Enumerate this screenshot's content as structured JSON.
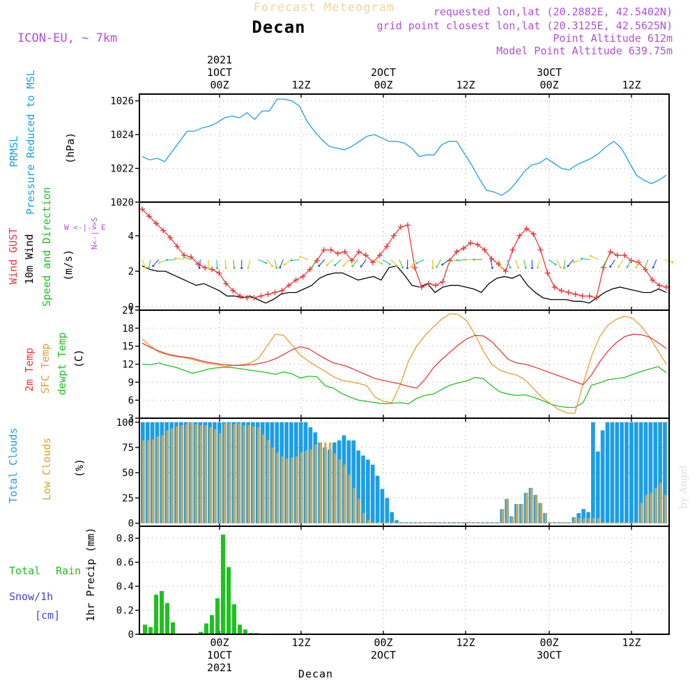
{
  "header": {
    "title_top": "Forecast Meteogram",
    "title_top_color": "#f0d49a",
    "location": "Decan",
    "model": "ICON-EU, ~ 7km",
    "meta_color": "#b04fd6",
    "requested": "requested lon,lat (20.2882E, 42.5402N)",
    "gridpoint": "grid point closest lon,lat (20.3125E, 42.5625N)",
    "point_alt": "Point Altitude 612m",
    "model_alt": "Model Point Altitude 639.75m",
    "watermark": "by Angel",
    "bottom_label": "Decan"
  },
  "time_axis": {
    "top": [
      {
        "idx": 0,
        "lines": [
          "2021",
          "1OCT",
          "00Z"
        ]
      },
      {
        "idx": 1,
        "lines": [
          "12Z"
        ]
      },
      {
        "idx": 2,
        "lines": [
          "2OCT",
          "00Z"
        ]
      },
      {
        "idx": 3,
        "lines": [
          "12Z"
        ]
      },
      {
        "idx": 4,
        "lines": [
          "3OCT",
          "00Z"
        ]
      },
      {
        "idx": 5,
        "lines": [
          "12Z"
        ]
      }
    ],
    "bottom": [
      {
        "idx": 0,
        "lines": [
          "00Z",
          "1OCT",
          "2021"
        ]
      },
      {
        "idx": 1,
        "lines": [
          "12Z"
        ]
      },
      {
        "idx": 2,
        "lines": [
          "00Z",
          "2OCT"
        ]
      },
      {
        "idx": 3,
        "lines": [
          "12Z"
        ]
      },
      {
        "idx": 4,
        "lines": [
          "00Z",
          "3OCT"
        ]
      },
      {
        "idx": 5,
        "lines": [
          "12Z"
        ]
      }
    ]
  },
  "colors": {
    "pressure": "#1a9ee8",
    "gust": "#e8383a",
    "wind": "#000000",
    "temp2m": "#e8383a",
    "sfctemp": "#e0a030",
    "dewpt": "#20c020",
    "total_clouds": "#1a9ee8",
    "low_clouds": "#d6a648",
    "rain": "#20c020",
    "snow": "#4040e0"
  },
  "panel_labels": {
    "pressure": {
      "line1": "PRMSL",
      "line2": "Pressure Reduced to MSL",
      "unit": "(hPa)"
    },
    "wind": {
      "gust": "Wind GUST",
      "wind10": "10m Wind",
      "speed": "Speed and Direction",
      "unit": "(m/s)",
      "compass_w": "W <-|-> E",
      "compass_ns": "N<-|->S"
    },
    "temp": {
      "t2m": "2m Temp",
      "sfc": "SFC Temp",
      "dew": "dewpt Temp",
      "unit": "(C)"
    },
    "clouds": {
      "total": "Total Clouds",
      "low": "Low Clouds",
      "unit": "(%)"
    },
    "precip": {
      "total": "Total",
      "rain": "Rain",
      "snow": "Snow/1h",
      "cm": "[cm]",
      "axis": "1hr Precip (mm)"
    }
  },
  "chart_data": [
    {
      "type": "line",
      "title": "PRMSL Pressure Reduced to MSL",
      "ylabel": "(hPa)",
      "ylim": [
        1020,
        1026.4
      ],
      "yticks": [
        1020,
        1022,
        1024,
        1026
      ],
      "series": [
        {
          "name": "PRMSL",
          "values": [
            1022.7,
            1022.5,
            1022.6,
            1022.4,
            1023.0,
            1023.6,
            1024.2,
            1024.2,
            1024.4,
            1024.5,
            1024.7,
            1025.0,
            1025.1,
            1025.0,
            1025.3,
            1024.9,
            1025.4,
            1025.4,
            1026.1,
            1026.1,
            1026.0,
            1025.7,
            1024.8,
            1024.2,
            1023.7,
            1023.3,
            1023.2,
            1023.1,
            1023.3,
            1023.6,
            1023.9,
            1024.0,
            1023.8,
            1023.6,
            1023.6,
            1023.5,
            1023.2,
            1022.7,
            1022.8,
            1022.8,
            1023.4,
            1023.6,
            1023.6,
            1022.9,
            1022.2,
            1021.4,
            1020.7,
            1020.6,
            1020.4,
            1020.7,
            1021.2,
            1021.8,
            1022.2,
            1022.3,
            1022.6,
            1022.3,
            1022.0,
            1021.9,
            1022.2,
            1022.4,
            1022.6,
            1022.9,
            1023.3,
            1023.6,
            1023.2,
            1022.4,
            1021.6,
            1021.3,
            1021.1,
            1021.3,
            1021.6
          ]
        }
      ]
    },
    {
      "type": "line",
      "title": "Wind GUST / 10m Wind Speed and Direction",
      "ylabel": "(m/s)",
      "ylim": [
        -0.2,
        5.9
      ],
      "yticks": [
        0,
        2,
        4
      ],
      "series": [
        {
          "name": "Wind GUST",
          "values": [
            5.5,
            5.1,
            4.7,
            4.3,
            3.9,
            3.4,
            2.9,
            2.8,
            2.4,
            2.2,
            2.1,
            1.9,
            1.3,
            0.9,
            0.6,
            0.5,
            0.5,
            0.6,
            0.7,
            0.8,
            0.9,
            1.2,
            1.5,
            1.7,
            2.1,
            2.6,
            3.2,
            3.2,
            3.0,
            3.1,
            2.6,
            3.1,
            2.9,
            2.5,
            2.9,
            3.4,
            4.0,
            4.5,
            4.6,
            2.2,
            1.1,
            1.3,
            1.2,
            1.4,
            2.6,
            3.1,
            3.3,
            3.6,
            3.5,
            3.2,
            2.7,
            2.4,
            2.0,
            3.2,
            4.0,
            4.4,
            4.1,
            3.2,
            1.9,
            1.1,
            0.9,
            0.8,
            0.7,
            0.6,
            0.6,
            0.5,
            2.2,
            3.1,
            2.9,
            2.9,
            2.6,
            2.5,
            2.1,
            1.5,
            1.2,
            1.1
          ]
        },
        {
          "name": "10m Wind",
          "values": [
            2.3,
            2.1,
            2.0,
            2.0,
            1.8,
            1.6,
            1.4,
            1.2,
            1.3,
            1.1,
            0.9,
            0.6,
            0.6,
            0.5,
            0.6,
            0.4,
            0.2,
            0.4,
            0.7,
            0.8,
            0.8,
            1.0,
            1.2,
            1.6,
            1.8,
            1.9,
            1.9,
            1.7,
            1.5,
            1.6,
            1.7,
            1.5,
            2.2,
            2.3,
            1.8,
            1.2,
            1.1,
            1.3,
            0.8,
            1.1,
            1.2,
            1.2,
            1.1,
            1.0,
            0.8,
            1.3,
            1.6,
            1.7,
            1.6,
            1.8,
            1.2,
            0.8,
            0.5,
            0.4,
            0.4,
            0.4,
            0.3,
            0.3,
            0.2,
            0.5,
            0.8,
            1.0,
            1.1,
            1.0,
            0.9,
            0.8,
            0.8,
            1.0,
            0.8
          ]
        }
      ]
    },
    {
      "type": "line",
      "title": "2m Temp / SFC Temp / dewpt Temp",
      "ylabel": "(C)",
      "ylim": [
        3,
        21
      ],
      "yticks": [
        3,
        6,
        9,
        12,
        15,
        18,
        21
      ],
      "series": [
        {
          "name": "2m Temp",
          "values": [
            15.5,
            14.8,
            14.2,
            13.7,
            13.4,
            13.2,
            13.0,
            12.6,
            12.3,
            12.1,
            11.9,
            11.8,
            11.8,
            11.9,
            12.1,
            12.4,
            12.9,
            13.6,
            14.4,
            14.9,
            14.6,
            13.7,
            12.9,
            12.2,
            11.9,
            11.4,
            10.8,
            10.2,
            9.6,
            9.3,
            9.0,
            8.7,
            8.3,
            8.0,
            9.5,
            11.4,
            12.8,
            14.0,
            15.2,
            16.2,
            16.8,
            16.7,
            15.8,
            14.3,
            12.8,
            12.2,
            12.0,
            11.6,
            11.1,
            10.6,
            10.1,
            9.6,
            9.1,
            8.6,
            10.2,
            12.4,
            14.2,
            15.6,
            16.6,
            17.0,
            16.9,
            16.5,
            15.6,
            14.6
          ]
        },
        {
          "name": "SFC Temp",
          "values": [
            16.2,
            15.0,
            14.0,
            13.6,
            13.3,
            13.1,
            12.8,
            12.4,
            12.1,
            11.9,
            11.6,
            11.8,
            11.9,
            12.2,
            13.0,
            15.0,
            17.0,
            16.8,
            15.2,
            13.5,
            12.5,
            11.6,
            10.8,
            9.9,
            9.3,
            9.1,
            8.8,
            8.4,
            6.5,
            5.8,
            5.6,
            8.5,
            12.5,
            15.0,
            16.8,
            18.2,
            19.5,
            20.4,
            20.3,
            19.2,
            17.0,
            14.2,
            12.0,
            11.0,
            10.5,
            10.2,
            9.4,
            8.0,
            6.5,
            5.5,
            4.5,
            3.9,
            3.8,
            8.7,
            13.3,
            16.6,
            18.5,
            19.5,
            20.0,
            19.6,
            18.3,
            16.5,
            14.2,
            12.0
          ]
        },
        {
          "name": "dewpt Temp",
          "values": [
            12.0,
            11.9,
            12.2,
            11.8,
            11.5,
            11.0,
            10.5,
            10.8,
            11.2,
            11.4,
            11.5,
            11.4,
            11.2,
            11.0,
            10.8,
            10.6,
            10.3,
            10.7,
            10.4,
            9.7,
            10.0,
            9.9,
            8.4,
            8.0,
            7.1,
            6.5,
            6.0,
            5.8,
            5.6,
            5.4,
            5.5,
            5.6,
            5.4,
            6.3,
            6.8,
            7.0,
            7.8,
            8.5,
            8.9,
            9.2,
            9.8,
            9.6,
            8.4,
            7.4,
            7.0,
            6.8,
            6.9,
            6.5,
            6.0,
            5.4,
            5.0,
            4.8,
            4.8,
            5.6,
            8.5,
            8.9,
            9.4,
            9.6,
            9.8,
            10.3,
            10.8,
            11.2,
            11.6,
            10.6
          ]
        }
      ]
    },
    {
      "type": "bar",
      "title": "Total Clouds / Low Clouds",
      "ylabel": "(%)",
      "ylim": [
        -3,
        104
      ],
      "yticks": [
        0,
        25,
        50,
        75,
        100
      ],
      "series": [
        {
          "name": "Total Clouds",
          "values": [
            100,
            100,
            100,
            100,
            100,
            100,
            100,
            100,
            100,
            100,
            100,
            100,
            100,
            100,
            100,
            100,
            100,
            100,
            100,
            100,
            100,
            100,
            100,
            100,
            100,
            100,
            100,
            100,
            100,
            100,
            100,
            100,
            100,
            100,
            100,
            95,
            90,
            80,
            75,
            73,
            80,
            82,
            87,
            82,
            82,
            72,
            67,
            63,
            58,
            47,
            34,
            25,
            11,
            3,
            1,
            1,
            1,
            1,
            1,
            1,
            1,
            1,
            1,
            1,
            1,
            1,
            1,
            1,
            1,
            1,
            1,
            1,
            1,
            1,
            1,
            14,
            24,
            7,
            19,
            19,
            30,
            35,
            28,
            20,
            10,
            1,
            1,
            1,
            1,
            1,
            6,
            10,
            14,
            11,
            100,
            71,
            92,
            100,
            100,
            100,
            100,
            100,
            100,
            100,
            100,
            100,
            100,
            100,
            100,
            100
          ]
        },
        {
          "name": "Low Clouds",
          "values": [
            82,
            82,
            83,
            86,
            87,
            92,
            94,
            96,
            97,
            98,
            100,
            98,
            97,
            97,
            95,
            93,
            89,
            99,
            99,
            98,
            99,
            97,
            97,
            96,
            95,
            88,
            82,
            75,
            70,
            66,
            64,
            65,
            66,
            70,
            72,
            73,
            78,
            80,
            80,
            80,
            69,
            63,
            58,
            48,
            35,
            24,
            10,
            3,
            1,
            1,
            1,
            1,
            1,
            1,
            1,
            1,
            1,
            1,
            1,
            1,
            1,
            1,
            1,
            1,
            1,
            1,
            1,
            1,
            1,
            1,
            1,
            1,
            1,
            1,
            1,
            14,
            24,
            7,
            19,
            19,
            30,
            35,
            28,
            20,
            10,
            1,
            1,
            1,
            1,
            1,
            6,
            5,
            5,
            5,
            5,
            5,
            1,
            1,
            1,
            1,
            1,
            1,
            1,
            1,
            20,
            28,
            30,
            35,
            40,
            28
          ]
        }
      ]
    },
    {
      "type": "bar",
      "title": "Total Rain / Snow 1hr Precip",
      "ylabel": "1hr Precip (mm)",
      "ylim": [
        0,
        0.9
      ],
      "yticks": [
        0,
        0.2,
        0.4,
        0.6,
        0.8
      ],
      "series": [
        {
          "name": "Total Rain",
          "values": [
            0.08,
            0.06,
            0.33,
            0.36,
            0.26,
            0.1,
            0,
            0,
            0,
            0,
            0.02,
            0.09,
            0.16,
            0.3,
            0.83,
            0.56,
            0.25,
            0.08,
            0.04,
            0.01,
            0.01
          ]
        },
        {
          "name": "Snow/1h",
          "values": [
            0,
            0,
            0,
            0,
            0,
            0,
            0,
            0,
            0,
            0,
            0,
            0,
            0,
            0,
            0,
            0,
            0,
            0,
            0,
            0,
            0
          ]
        }
      ]
    }
  ]
}
